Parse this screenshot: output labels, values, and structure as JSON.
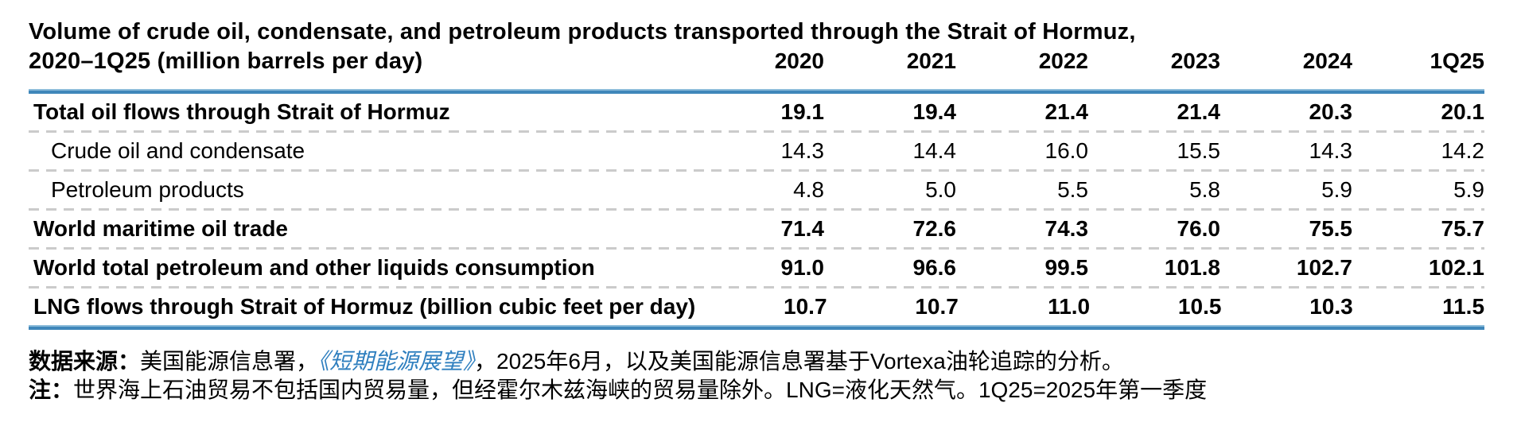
{
  "chart_data": {
    "type": "table",
    "title_line1": "Volume of crude oil, condensate, and petroleum products transported through the Strait of Hormuz,",
    "title_line2": "2020–1Q25 (million barrels per day)",
    "columns": [
      "2020",
      "2021",
      "2022",
      "2023",
      "2024",
      "1Q25"
    ],
    "rows": [
      {
        "label": "Total oil flows through Strait of Hormuz",
        "style": "bold",
        "values": [
          "19.1",
          "19.4",
          "21.4",
          "21.4",
          "20.3",
          "20.1"
        ]
      },
      {
        "label": "Crude oil and condensate",
        "style": "indent",
        "values": [
          "14.3",
          "14.4",
          "16.0",
          "15.5",
          "14.3",
          "14.2"
        ]
      },
      {
        "label": "Petroleum products",
        "style": "indent",
        "values": [
          "4.8",
          "5.0",
          "5.5",
          "5.8",
          "5.9",
          "5.9"
        ]
      },
      {
        "label": "World maritime oil trade",
        "style": "bold",
        "values": [
          "71.4",
          "72.6",
          "74.3",
          "76.0",
          "75.5",
          "75.7"
        ]
      },
      {
        "label": "World total petroleum and other liquids consumption",
        "style": "bold",
        "values": [
          "91.0",
          "96.6",
          "99.5",
          "101.8",
          "102.7",
          "102.1"
        ]
      },
      {
        "label": "LNG flows through Strait of Hormuz (billion cubic feet per day)",
        "style": "bold",
        "values": [
          "10.7",
          "10.7",
          "11.0",
          "10.5",
          "10.3",
          "11.5"
        ]
      }
    ],
    "layout": {
      "grid": "off",
      "legend": "none",
      "value_columns_right_aligned": true
    }
  },
  "footer": {
    "source_label": "数据来源：",
    "source_pre": "美国能源信息署，",
    "source_link": "《短期能源展望》",
    "source_post": "，2025年6月，以及美国能源信息署基于Vortexa油轮追踪的分析。",
    "note_label": "注：",
    "note_text": "世界海上石油贸易不包括国内贸易量，但经霍尔木兹海峡的贸易量除外。LNG=液化天然气。1Q25=2025年第一季度"
  },
  "colors": {
    "rule_blue": "#3f87ba",
    "rule_blue_light": "#8cbcda",
    "dash_gray": "#cbcbcb",
    "link_blue": "#2f7fbf",
    "text": "#000000"
  }
}
